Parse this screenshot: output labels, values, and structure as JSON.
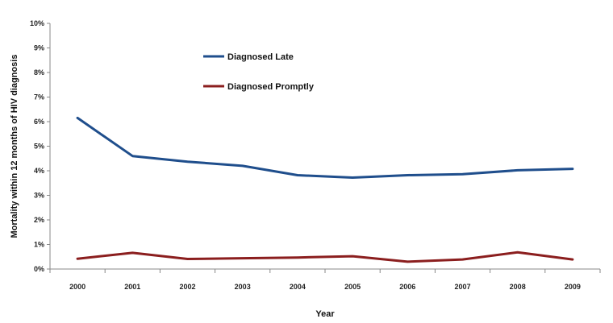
{
  "chart_data": {
    "type": "line",
    "xlabel": "Year",
    "ylabel": "Mortality within 12 months of HIV diagnosis",
    "x": [
      "2000",
      "2001",
      "2002",
      "2003",
      "2004",
      "2005",
      "2006",
      "2007",
      "2008",
      "2009"
    ],
    "yticks": [
      "0%",
      "1%",
      "2%",
      "3%",
      "4%",
      "5%",
      "6%",
      "7%",
      "8%",
      "9%",
      "10%"
    ],
    "ylim": [
      0,
      10
    ],
    "grid": false,
    "legend_position": "top-left",
    "series": [
      {
        "name": "Diagnosed Late",
        "color": "#1f4e8c",
        "values": [
          6.15,
          4.6,
          4.37,
          4.2,
          3.82,
          3.72,
          3.82,
          3.86,
          4.02,
          4.08
        ]
      },
      {
        "name": "Diagnosed Promptly",
        "color": "#8b1e1e",
        "values": [
          0.42,
          0.66,
          0.41,
          0.44,
          0.47,
          0.52,
          0.3,
          0.39,
          0.68,
          0.39
        ]
      }
    ]
  }
}
